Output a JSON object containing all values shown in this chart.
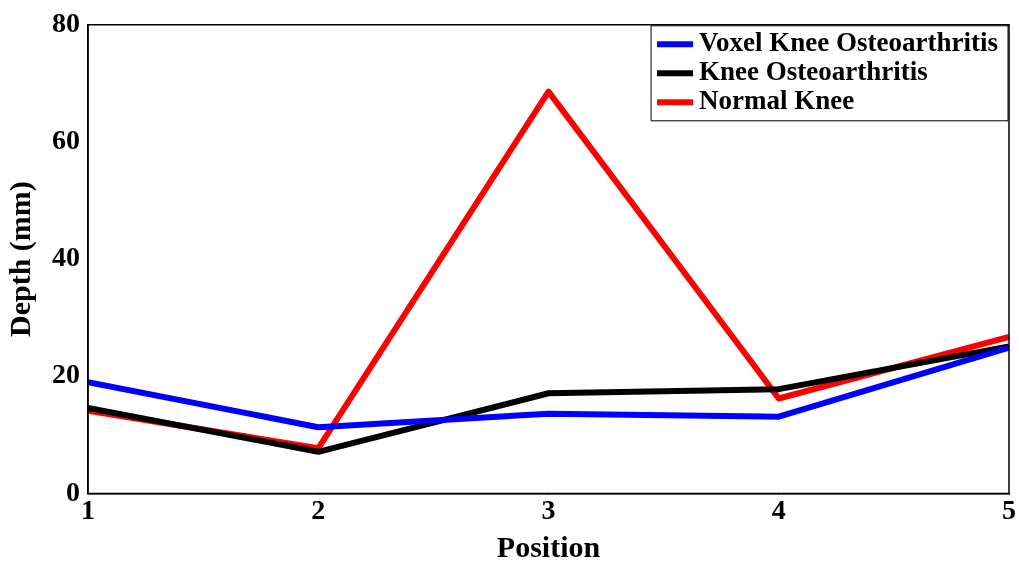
{
  "chart_data": {
    "type": "line",
    "xlabel": "Position",
    "ylabel": "Depth (mm)",
    "x": [
      1,
      2,
      3,
      4,
      5
    ],
    "series": [
      {
        "name": "Voxel Knee Osteoarthritis",
        "color": "#0000ff",
        "values": [
          19.0,
          11.3,
          13.6,
          13.1,
          24.9
        ]
      },
      {
        "name": "Knee Osteoarthritis",
        "color": "#000000",
        "values": [
          14.6,
          7.1,
          17.1,
          17.8,
          25.1
        ]
      },
      {
        "name": "Normal Knee",
        "color": "#ff0000",
        "values": [
          14.1,
          7.7,
          68.6,
          16.2,
          26.7
        ]
      }
    ],
    "xlim": [
      1,
      5
    ],
    "xticks": [
      1,
      2,
      3,
      4,
      5
    ],
    "ylim": [
      0,
      80
    ],
    "yticks": [
      0,
      20,
      40,
      60,
      80
    ],
    "grid": false,
    "legend": "top right",
    "marker": "none",
    "line_style": "solid"
  }
}
